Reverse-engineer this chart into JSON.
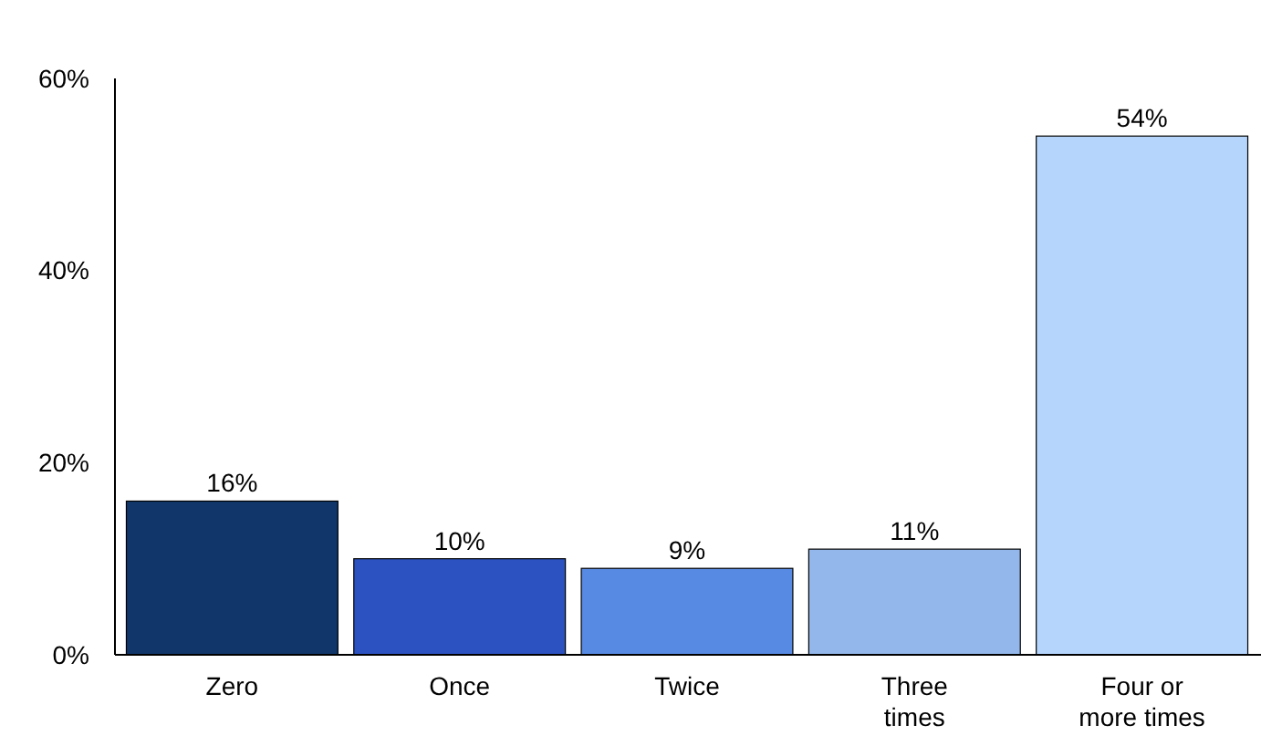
{
  "chart_data": {
    "type": "bar",
    "categories": [
      "Zero",
      "Once",
      "Twice",
      "Three times",
      "Four or more times"
    ],
    "values": [
      16,
      10,
      9,
      11,
      54
    ],
    "colors": [
      "#10366a",
      "#2c52c1",
      "#578ae2",
      "#93b7ea",
      "#b5d5fd"
    ],
    "value_labels": [
      "16%",
      "10%",
      "9%",
      "11%",
      "54%"
    ],
    "ylim": [
      0,
      60
    ],
    "yticks": [
      {
        "value": 0,
        "label": "0%"
      },
      {
        "value": 20,
        "label": "20%"
      },
      {
        "value": 40,
        "label": "40%"
      },
      {
        "value": 60,
        "label": "60%"
      }
    ],
    "grid": false
  }
}
